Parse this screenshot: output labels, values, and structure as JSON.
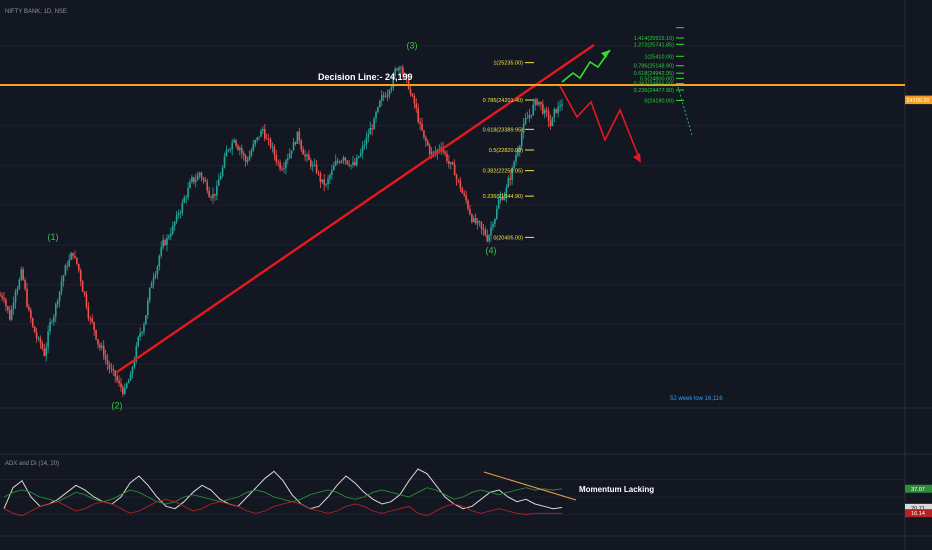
{
  "header": {
    "symbol_title": "NIFTY BANK, 1D, NSE",
    "indicator_title": "ADX and DI (14, 20)"
  },
  "annotations": {
    "decision_line": "Decision Line:- 24,199",
    "momentum": "Momentum Lacking",
    "week_low": "52 week low 16,116"
  },
  "colors": {
    "background": "#131722",
    "candle_up": "#26a69a",
    "candle_down": "#ef5350",
    "trendline": "#e8181d",
    "decision_line": "#f7a21b",
    "fib_text": "#f5e642",
    "wave_label": "#2ecc40",
    "green_arrow": "#32e02a",
    "red_arrow": "#e8181d",
    "adx_line": "#d9d9d9",
    "di_plus": "#2e8b3a",
    "di_minus": "#b22222",
    "momentum_line": "#f0a04b"
  },
  "chart_data": [
    {
      "type": "line",
      "title": "NIFTY BANK, 1D, NSE",
      "x_range": [
        "Mar",
        "Dec"
      ],
      "ylim": [
        15800,
        26800
      ],
      "y_ticks": [],
      "x_ticks": [],
      "wave_labels": [
        {
          "label": "(1)",
          "value": 20000
        },
        {
          "label": "(2)",
          "value": 16116
        },
        {
          "label": "(3)",
          "value": 25235
        },
        {
          "label": "(4)",
          "value": 20405
        }
      ],
      "decision_line": 24199,
      "fib_retracement": [
        {
          "ratio": "1",
          "value": 25235.0,
          "label": "1(25235.00)"
        },
        {
          "ratio": "0.786",
          "value": 24201.4,
          "label": "0.786(24201.40)"
        },
        {
          "ratio": "0.618",
          "value": 23389.95,
          "label": "0.618(23389.95)"
        },
        {
          "ratio": "0.5",
          "value": 22820.0,
          "label": "0.5(22820.00)"
        },
        {
          "ratio": "0.382",
          "value": 22250.05,
          "label": "0.382(22250.05)"
        },
        {
          "ratio": "0.236",
          "value": 21544.9,
          "label": "0.236(21544.90)"
        },
        {
          "ratio": "0",
          "value": 20405.0,
          "label": "0(20405.00)"
        }
      ],
      "fib_extension": [
        {
          "ratio": "1.618",
          "value": 26200.0,
          "label": ""
        },
        {
          "ratio": "1.414",
          "value": 25915.1,
          "label": "1.414(25915.10)"
        },
        {
          "ratio": "1.272",
          "value": 25741.85,
          "label": "1.272(25741.85)"
        },
        {
          "ratio": "1",
          "value": 25410.0,
          "label": "1(25410.00)"
        },
        {
          "ratio": "0.786",
          "value": 25148.9,
          "label": "0.786(25148.90)"
        },
        {
          "ratio": "0.618",
          "value": 24942.95,
          "label": "0.618(24942.95)"
        },
        {
          "ratio": "0.5",
          "value": 24800.0,
          "label": "0.5(24800.00)"
        },
        {
          "ratio": "0.382",
          "value": 24656.0,
          "label": "0.382(24656.00)"
        },
        {
          "ratio": "0.236",
          "value": 24477.9,
          "label": "0.236(24477.90)"
        },
        {
          "ratio": "0",
          "value": 24190.0,
          "label": "0(24190.00)"
        }
      ],
      "price_badges": [
        {
          "value": 24227,
          "label": "24227.40",
          "color": "#e8181d"
        },
        {
          "value": 24199,
          "label": "24199.20",
          "color": "#f7a21b"
        }
      ],
      "close_series": [
        18800,
        18200,
        19000,
        19400,
        18600,
        17900,
        17500,
        17200,
        18000,
        18500,
        19200,
        19700,
        20000,
        19500,
        18800,
        18100,
        17700,
        17300,
        16900,
        16600,
        16300,
        16116,
        16500,
        17300,
        17900,
        18600,
        19400,
        19900,
        20300,
        20600,
        20900,
        21300,
        21700,
        22000,
        22200,
        21900,
        21600,
        21700,
        22300,
        22900,
        23200,
        22900,
        22500,
        22800,
        23100,
        23400,
        23000,
        22700,
        22400,
        22600,
        22900,
        23200,
        22800,
        22500,
        22300,
        22000,
        21800,
        22200,
        22500,
        22700,
        22500,
        22400,
        22700,
        23100,
        23500,
        23900,
        24300,
        24600,
        25000,
        25235,
        24700,
        24200,
        23700,
        23100,
        22800,
        22700,
        23000,
        22600,
        22300,
        21900,
        21500,
        21100,
        20800,
        20600,
        20405,
        20900,
        21400,
        21600,
        22100,
        22700,
        23300,
        23700,
        24000,
        24150,
        23800,
        23500,
        23950,
        24150
      ]
    },
    {
      "type": "line",
      "title": "ADX and DI (14, 20)",
      "ylim": [
        0,
        60
      ],
      "y_ticks": [],
      "badges": [
        {
          "value": 37.07,
          "label": "37.07",
          "color": "#2e8b3a"
        },
        {
          "value": 20.71,
          "label": "20.71",
          "color": "#d9d9d9"
        },
        {
          "value": 16.14,
          "label": "16.14",
          "color": "#b22222"
        }
      ],
      "series": [
        {
          "values": [
            20,
            38,
            44,
            30,
            22,
            24,
            28,
            34,
            40,
            36,
            30,
            26,
            24,
            30,
            42,
            48,
            40,
            30,
            22,
            20,
            26,
            34,
            40,
            36,
            28,
            24,
            22,
            30,
            38,
            46,
            52,
            44,
            32,
            24,
            20,
            22,
            30,
            40,
            48,
            42,
            34,
            28,
            24,
            26,
            32,
            44,
            54,
            50,
            40,
            30,
            24,
            20,
            22,
            28,
            34,
            36,
            30,
            26,
            28,
            24,
            22,
            20,
            21
          ]
        },
        {
          "values": [
            30,
            34,
            36,
            34,
            30,
            28,
            26,
            30,
            34,
            32,
            28,
            26,
            28,
            32,
            36,
            34,
            30,
            26,
            24,
            26,
            30,
            32,
            30,
            28,
            26,
            28,
            30,
            34,
            36,
            34,
            30,
            28,
            26,
            28,
            32,
            34,
            36,
            34,
            30,
            28,
            30,
            34,
            36,
            34,
            32,
            30,
            34,
            38,
            36,
            32,
            28,
            30,
            34,
            36,
            34,
            32,
            34,
            36,
            38,
            36,
            37,
            36,
            37
          ]
        },
        {
          "values": [
            20,
            16,
            14,
            18,
            22,
            24,
            26,
            22,
            18,
            20,
            24,
            26,
            24,
            20,
            16,
            18,
            22,
            26,
            28,
            26,
            22,
            18,
            20,
            24,
            26,
            24,
            22,
            18,
            16,
            18,
            22,
            24,
            26,
            24,
            20,
            18,
            16,
            18,
            22,
            24,
            22,
            18,
            16,
            18,
            20,
            22,
            16,
            14,
            18,
            22,
            24,
            22,
            18,
            16,
            18,
            20,
            18,
            16,
            15,
            16,
            16,
            16,
            16
          ]
        }
      ]
    }
  ]
}
